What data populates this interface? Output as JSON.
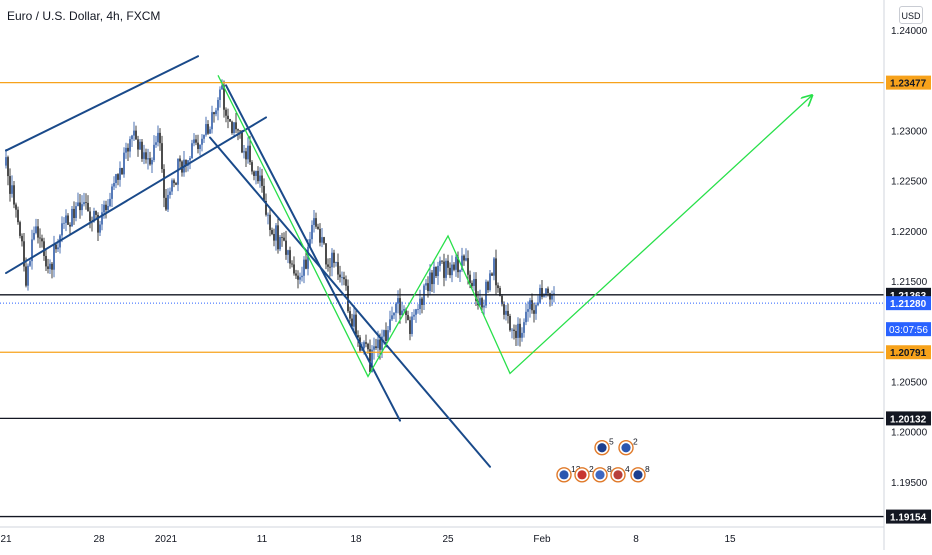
{
  "header": {
    "symbol_title": "Euro / U.S. Dollar, 4h, FXCM",
    "currency_button": "USD"
  },
  "colors": {
    "up": "#1e4fa0",
    "down": "#111111",
    "channel": "#1a4a8a",
    "projection": "#28e04a",
    "orange_level": "#f7a21b",
    "black_level": "#131722",
    "price_tag": "#2962ff",
    "axis_text": "#131722",
    "axis_line": "#d1d4dc"
  },
  "chart_data": {
    "type": "candlestick",
    "title": "Euro / U.S. Dollar, 4h, FXCM",
    "y_axis": {
      "min": 1.191,
      "max": 1.243,
      "position": "right",
      "tick_labels": [
        "1.24000",
        "1.23500",
        "1.23000",
        "1.22500",
        "1.22000",
        "1.21500",
        "1.20500",
        "1.20000",
        "1.19500"
      ],
      "tick_values": [
        1.24,
        1.235,
        1.23,
        1.225,
        1.22,
        1.215,
        1.205,
        1.2,
        1.195
      ]
    },
    "x_axis": {
      "tick_labels": [
        "21",
        "28",
        "2021",
        "11",
        "18",
        "25",
        "Feb",
        "8",
        "15"
      ],
      "tick_positions": [
        0,
        46.5,
        80,
        128,
        175,
        221,
        268,
        315,
        362
      ]
    },
    "candles_summary": {
      "count": 275,
      "bar_index_range": [
        0,
        274
      ]
    },
    "price_levels": [
      {
        "name": "resistance",
        "value": 1.23477,
        "label": "1.23477",
        "color": "orange_level",
        "style": "solid"
      },
      {
        "name": "support-top",
        "value": 1.21363,
        "label": "1.21363",
        "color": "black_level",
        "style": "solid"
      },
      {
        "name": "current-price",
        "value": 1.2128,
        "label": "1.21280",
        "color": "price_tag",
        "style": "dotted",
        "countdown": "03:07:56"
      },
      {
        "name": "support-mid",
        "value": 1.20791,
        "label": "1.20791",
        "color": "orange_level",
        "style": "solid"
      },
      {
        "name": "support-low",
        "value": 1.20132,
        "label": "1.20132",
        "color": "black_level",
        "style": "solid"
      },
      {
        "name": "support-bottom",
        "value": 1.19154,
        "label": "1.19154",
        "color": "black_level",
        "style": "solid"
      }
    ],
    "trendlines": [
      {
        "name": "rising-channel-upper",
        "color": "channel",
        "points": [
          [
            0,
            1.228
          ],
          [
            96,
            1.2374
          ]
        ]
      },
      {
        "name": "rising-channel-lower",
        "color": "channel",
        "points": [
          [
            0,
            1.2158
          ],
          [
            130,
            1.2313
          ]
        ]
      },
      {
        "name": "falling-channel-upper",
        "color": "channel",
        "points": [
          [
            110,
            1.2345
          ],
          [
            197,
            1.2011
          ]
        ]
      },
      {
        "name": "falling-channel-lower",
        "color": "channel",
        "points": [
          [
            102,
            1.2293
          ],
          [
            242,
            1.1965
          ]
        ]
      }
    ],
    "projection_path": {
      "color": "projection",
      "points": [
        [
          106,
          1.2355
        ],
        [
          181,
          1.2055
        ],
        [
          221,
          1.2195
        ],
        [
          252,
          1.2058
        ],
        [
          403,
          1.2335
        ]
      ],
      "arrowhead_at_end": true
    },
    "event_badges": {
      "top_row": [
        {
          "label": "5",
          "x": 298,
          "value": 1.1984
        },
        {
          "label": "2",
          "x": 310,
          "value": 1.1984
        }
      ],
      "bottom_row": [
        {
          "label": "12",
          "x": 279,
          "value": 1.1957
        },
        {
          "label": "2",
          "x": 288,
          "value": 1.1957
        },
        {
          "label": "8",
          "x": 297,
          "value": 1.1957
        },
        {
          "label": "4",
          "x": 306,
          "value": 1.1957
        },
        {
          "label": "8",
          "x": 316,
          "value": 1.1957
        }
      ]
    }
  }
}
